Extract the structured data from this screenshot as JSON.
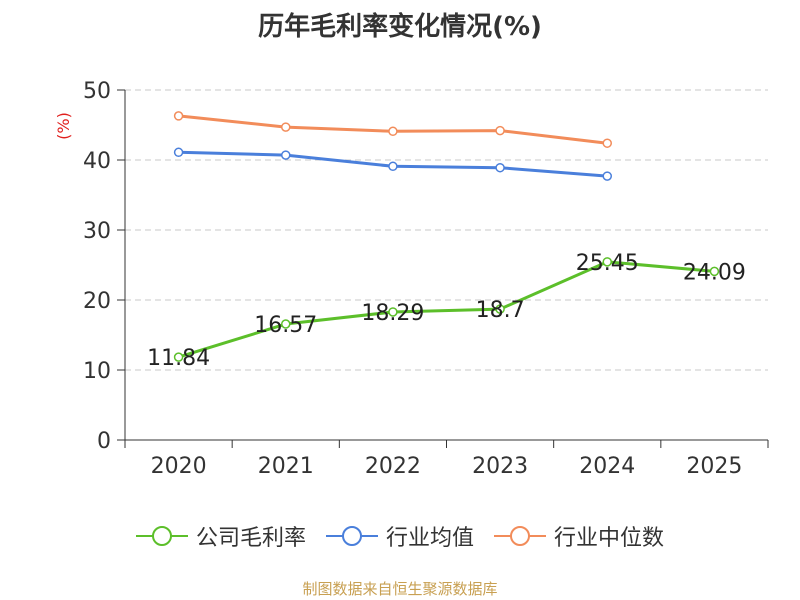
{
  "title": "历年毛利率变化情况(%)",
  "source": "制图数据来自恒生聚源数据库",
  "chart_data": {
    "type": "line",
    "title": "历年毛利率变化情况(%)",
    "ylabel": "(%)",
    "xlabel": "",
    "categories": [
      "2020",
      "2021",
      "2022",
      "2023",
      "2024",
      "2025"
    ],
    "ylim": [
      0,
      50
    ],
    "yticks": [
      0,
      10,
      20,
      30,
      40,
      50
    ],
    "grid": true,
    "legend": "bottom",
    "series": [
      {
        "name": "公司毛利率",
        "color": "#5cbf2a",
        "values": [
          11.84,
          16.57,
          18.29,
          18.7,
          25.45,
          24.09
        ],
        "labels": [
          "11.84",
          "16.57",
          "18.29",
          "18.7",
          "25.45",
          "24.09"
        ]
      },
      {
        "name": "行业均值",
        "color": "#4a7fdb",
        "values": [
          41.1,
          40.7,
          39.1,
          38.9,
          37.7,
          null
        ]
      },
      {
        "name": "行业中位数",
        "color": "#f28c5a",
        "values": [
          46.3,
          44.7,
          44.1,
          44.2,
          42.4,
          null
        ]
      }
    ],
    "ylabel_color": "#e0201e"
  }
}
